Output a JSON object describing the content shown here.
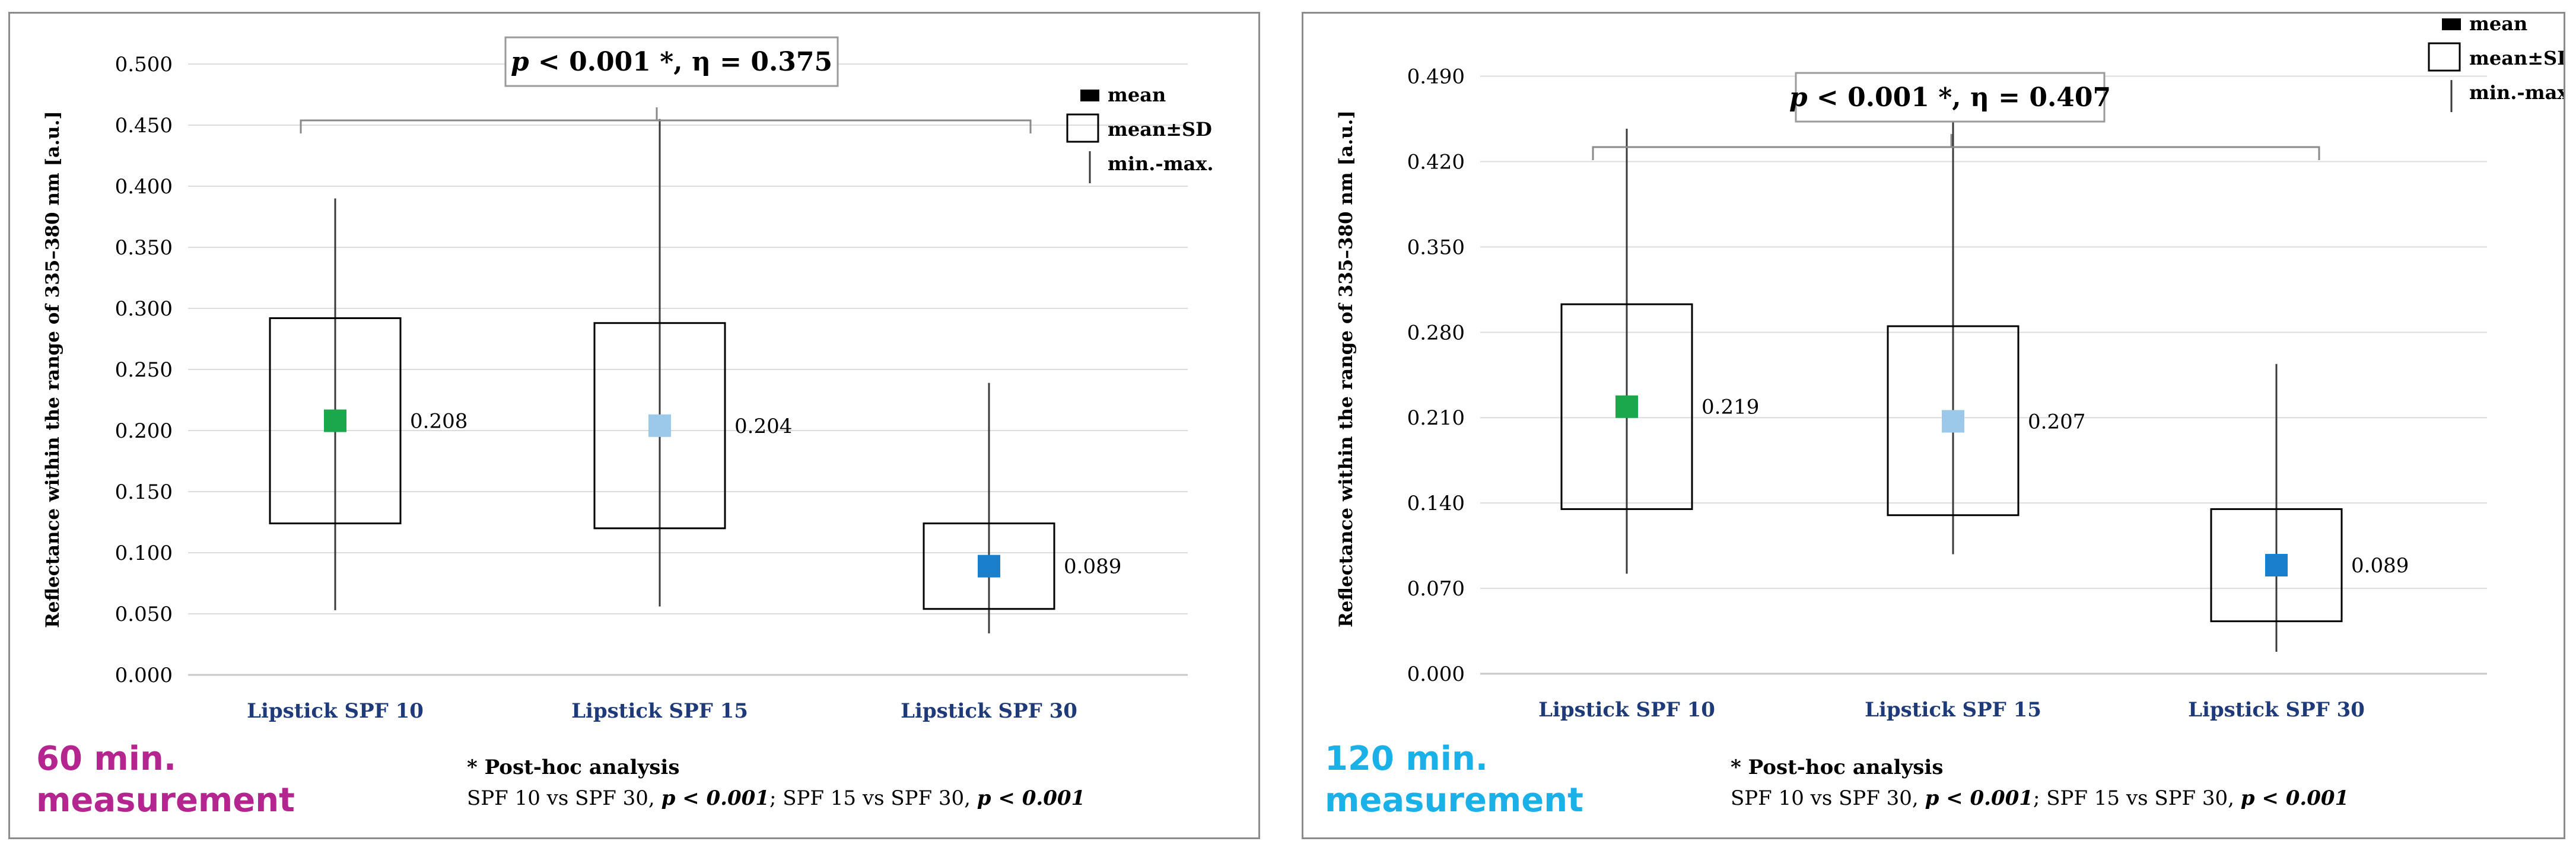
{
  "chart_data": [
    {
      "type": "box",
      "ylabel": "Reflectance within the range of 335–380 nm [a.u.]",
      "categories": [
        "Lipstick SPF 10",
        "Lipstick SPF 15",
        "Lipstick SPF 30"
      ],
      "yticks": [
        0.0,
        0.05,
        0.1,
        0.15,
        0.2,
        0.25,
        0.3,
        0.35,
        0.4,
        0.45,
        0.5
      ],
      "ytick_labels": [
        "0.000",
        "0.050",
        "0.100",
        "0.150",
        "0.200",
        "0.250",
        "0.300",
        "0.350",
        "0.400",
        "0.450",
        "0.500"
      ],
      "ylim": [
        0.0,
        0.5
      ],
      "mean": [
        0.208,
        0.204,
        0.089
      ],
      "mean_labels": [
        "0.208",
        "0.204",
        "0.089"
      ],
      "sd_low": [
        0.124,
        0.12,
        0.054
      ],
      "sd_high": [
        0.292,
        0.288,
        0.124
      ],
      "min": [
        0.053,
        0.056,
        0.034
      ],
      "max": [
        0.39,
        0.455,
        0.239
      ],
      "colors": [
        "#1aa84a",
        "#9cc8ea",
        "#1a7fcc"
      ],
      "annotation": {
        "p_label": "p",
        "p_rest": " < 0.001 *, η = 0.375"
      },
      "legend": [
        "mean",
        "mean±SD",
        "min.-max."
      ],
      "measurement": [
        "60 min.",
        "measurement"
      ],
      "measurement_color": "#b5258f",
      "posthoc": {
        "title": "* Post-hoc analysis",
        "line1": "SPF 10 vs SPF 30, ",
        "p1": "p < 0.001",
        "sep": ";   SPF 15 vs SPF 30, ",
        "p2": "p < 0.001"
      }
    },
    {
      "type": "box",
      "ylabel": "Reflectance within the range of 335–380 nm [a.u.]",
      "categories": [
        "Lipstick SPF 10",
        "Lipstick SPF 15",
        "Lipstick SPF 30"
      ],
      "yticks": [
        0.0,
        0.07,
        0.14,
        0.21,
        0.28,
        0.35,
        0.42,
        0.49
      ],
      "ytick_labels": [
        "0.000",
        "0.070",
        "0.140",
        "0.210",
        "0.280",
        "0.350",
        "0.420",
        "0.490"
      ],
      "ylim": [
        0.0,
        0.5
      ],
      "mean": [
        0.219,
        0.207,
        0.089
      ],
      "mean_labels": [
        "0.219",
        "0.207",
        "0.089"
      ],
      "sd_low": [
        0.135,
        0.13,
        0.043
      ],
      "sd_high": [
        0.303,
        0.285,
        0.135
      ],
      "min": [
        0.082,
        0.098,
        0.018
      ],
      "max": [
        0.447,
        0.457,
        0.254
      ],
      "colors": [
        "#1aa84a",
        "#9cc8ea",
        "#1a7fcc"
      ],
      "annotation": {
        "p_label": "p",
        "p_rest": " < 0.001 *, η = 0.407"
      },
      "legend": [
        "mean",
        "mean±SD",
        "min.-max."
      ],
      "measurement": [
        "120 min.",
        "measurement"
      ],
      "measurement_color": "#1ab0e8",
      "posthoc": {
        "title": "* Post-hoc analysis",
        "line1": "SPF 10 vs SPF 30, ",
        "p1": "p < 0.001",
        "sep": ";   SPF 15 vs SPF 30, ",
        "p2": "p < 0.001"
      }
    }
  ]
}
